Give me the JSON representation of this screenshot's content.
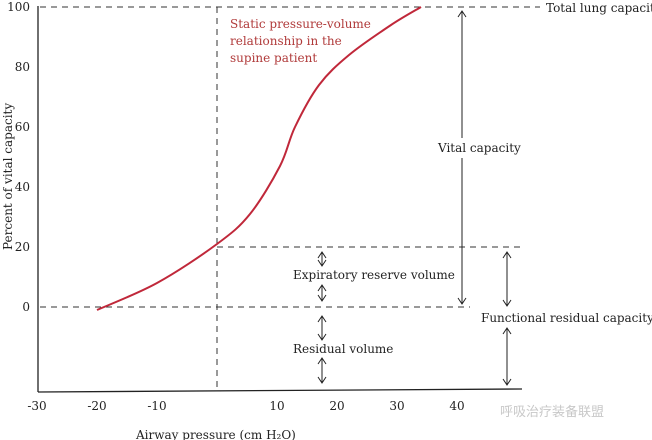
{
  "chart_data": {
    "type": "line",
    "xlabel": "Airway pressure (cm H₂O)",
    "ylabel": "Percent of vital capacity",
    "xlim": [
      -30,
      48
    ],
    "ylim": [
      -28,
      100
    ],
    "x_ticks": [
      "-30",
      "-20",
      "-10",
      "10",
      "20",
      "30",
      "40"
    ],
    "x_tick_values": [
      -30,
      -20,
      -10,
      10,
      20,
      30,
      40
    ],
    "y_ticks": [
      "0",
      "20",
      "40",
      "60",
      "80",
      "100"
    ],
    "y_tick_values": [
      0,
      20,
      40,
      60,
      80,
      100
    ],
    "grid": false,
    "series": [
      {
        "name": "Static pressure-volume relationship in the supine patient",
        "color": "#c0283a",
        "x": [
          -20,
          -10,
          0,
          5.5,
          10.5,
          13,
          17,
          22,
          29,
          34
        ],
        "y": [
          -1,
          8,
          21,
          31,
          47,
          60,
          74,
          84,
          94,
          100
        ]
      }
    ],
    "series_label_lines": [
      "Static pressure-volume",
      "relationship in the",
      "supine patient"
    ],
    "annotations": {
      "total_lung_capacity": "Total lung capacity",
      "vital_capacity": "Vital capacity",
      "expiratory_reserve_volume": "Expiratory reserve volume",
      "residual_volume": "Residual volume",
      "functional_residual_capacity": "Functional residual capacity"
    },
    "watermark": "呼吸治疗装备联盟"
  }
}
